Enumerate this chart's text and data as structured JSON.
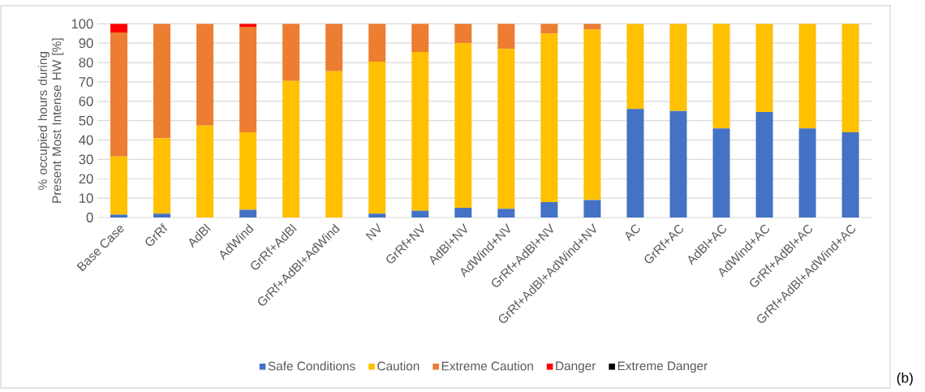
{
  "chart_data": {
    "type": "bar",
    "stacked": true,
    "ylabel": "% occupied hours during Present Most Intense HW [%]",
    "categories": [
      "Base Case",
      "GrRf",
      "AdBl",
      "AdWind",
      "GrRf+AdBl",
      "GrRf+AdBl+AdWind",
      "NV",
      "GrRf+NV",
      "AdBl+NV",
      "AdWind+NV",
      "GrRf+AdBl+NV",
      "GrRf+AdBl+AdWind+NV",
      "AC",
      "GrRf+AC",
      "AdBl+AC",
      "AdWind+AC",
      "GrRf+AdBl+AC",
      "GrRf+AdBl+AdWind+AC"
    ],
    "series": [
      {
        "name": "Safe Conditions",
        "color": "#4472c4",
        "values": [
          1.5,
          2,
          0,
          4,
          0,
          0,
          2,
          3.5,
          5,
          4.5,
          8,
          9,
          56,
          55,
          46,
          54.5,
          46,
          44
        ]
      },
      {
        "name": "Caution",
        "color": "#ffc000",
        "values": [
          30,
          39,
          47.5,
          40,
          70.5,
          75.5,
          78.5,
          82,
          85,
          82.5,
          87,
          88,
          44,
          45,
          54,
          45.5,
          54,
          56
        ]
      },
      {
        "name": "Extreme Caution",
        "color": "#ed7d31",
        "values": [
          64,
          59,
          52.5,
          54.5,
          29.5,
          24.5,
          19.5,
          14.5,
          10,
          13,
          5,
          3,
          0,
          0,
          0,
          0,
          0,
          0
        ]
      },
      {
        "name": "Danger",
        "color": "#ff0000",
        "values": [
          4.5,
          0,
          0,
          1.5,
          0,
          0,
          0,
          0,
          0,
          0,
          0,
          0,
          0,
          0,
          0,
          0,
          0,
          0
        ]
      },
      {
        "name": "Extreme Danger",
        "color": "#000000",
        "values": [
          0,
          0,
          0,
          0,
          0,
          0,
          0,
          0,
          0,
          0,
          0,
          0,
          0,
          0,
          0,
          0,
          0,
          0
        ]
      }
    ],
    "ylim": [
      0,
      100
    ],
    "yticks": [
      0,
      10,
      20,
      30,
      40,
      50,
      60,
      70,
      80,
      90,
      100
    ],
    "grid": "y",
    "legend": "bottom",
    "annotations": [
      "(b)"
    ]
  }
}
